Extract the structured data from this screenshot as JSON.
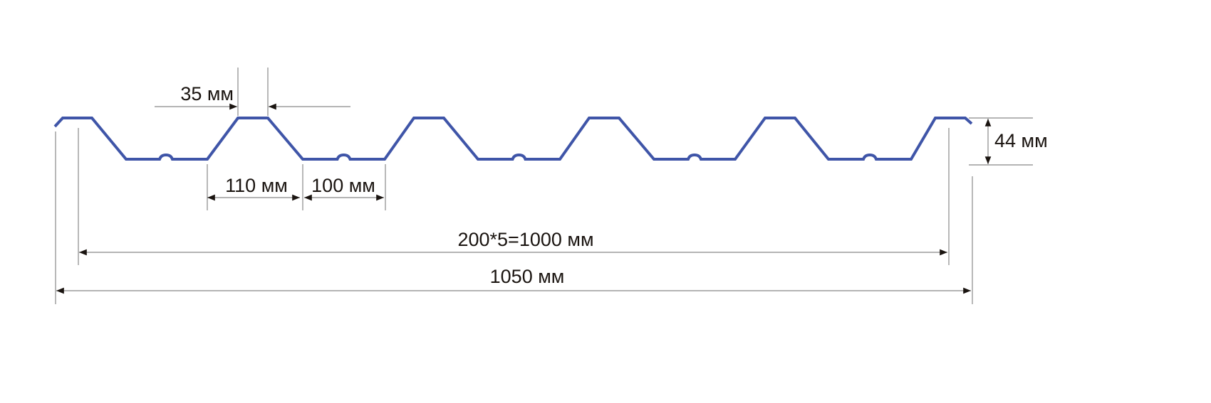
{
  "profile_color": "#3f55a8",
  "dimensions": {
    "crest_width": "35 мм",
    "slope_span": "110 мм",
    "trough_width": "100 мм",
    "pitch_total": "200*5=1000 мм",
    "overall_width": "1050 мм",
    "height": "44 мм"
  }
}
